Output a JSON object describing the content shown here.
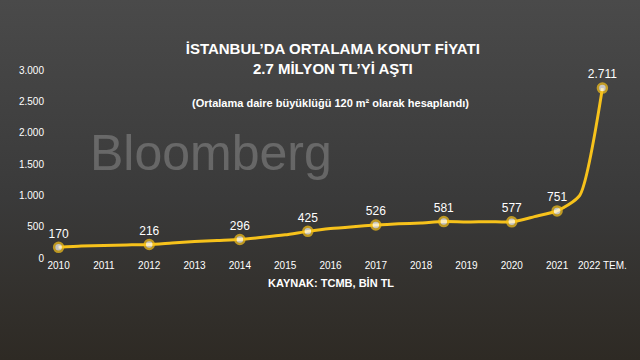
{
  "chart_data": {
    "type": "line",
    "title": "İSTANBUL’DA ORTALAMA KONUT FİYATI\n2.7 MİLYON TL’Yİ AŞTI",
    "subtitle": "(Ortalama daire büyüklüğü 120 m² olarak hesaplandı)",
    "annotations": [
      "KAYNAK: TCMB, BİN TL",
      "Bloomberg"
    ],
    "categories": [
      "2010",
      null,
      "2011",
      null,
      "2012",
      null,
      "2013",
      null,
      "2014",
      null,
      "2015",
      null,
      "2016",
      null,
      "2017",
      null,
      "2018",
      null,
      "2019",
      null,
      "2020",
      null,
      "2021",
      null,
      "2022 TEM."
    ],
    "values": [
      170,
      190,
      200,
      208,
      216,
      240,
      262,
      280,
      296,
      330,
      370,
      425,
      470,
      500,
      526,
      545,
      560,
      581,
      575,
      580,
      577,
      660,
      751,
      1000,
      2711
    ],
    "value_labels": [
      "170",
      null,
      null,
      null,
      "216",
      null,
      null,
      null,
      "296",
      null,
      null,
      "425",
      null,
      null,
      "526",
      null,
      null,
      "581",
      null,
      null,
      "577",
      null,
      "751",
      null,
      "2.711"
    ],
    "data_labels": true,
    "color": "#f7c21b",
    "marker": "circle",
    "ylim": [
      0,
      3000
    ],
    "yticks": [
      0,
      500,
      {
        "value": 1000,
        "label": "1.000"
      },
      {
        "value": 1500,
        "label": "1.500"
      },
      {
        "value": 2000,
        "label": "2.000"
      },
      {
        "value": 2500,
        "label": "2.500"
      },
      {
        "value": 3000,
        "label": "3.000"
      }
    ],
    "grid": false
  }
}
